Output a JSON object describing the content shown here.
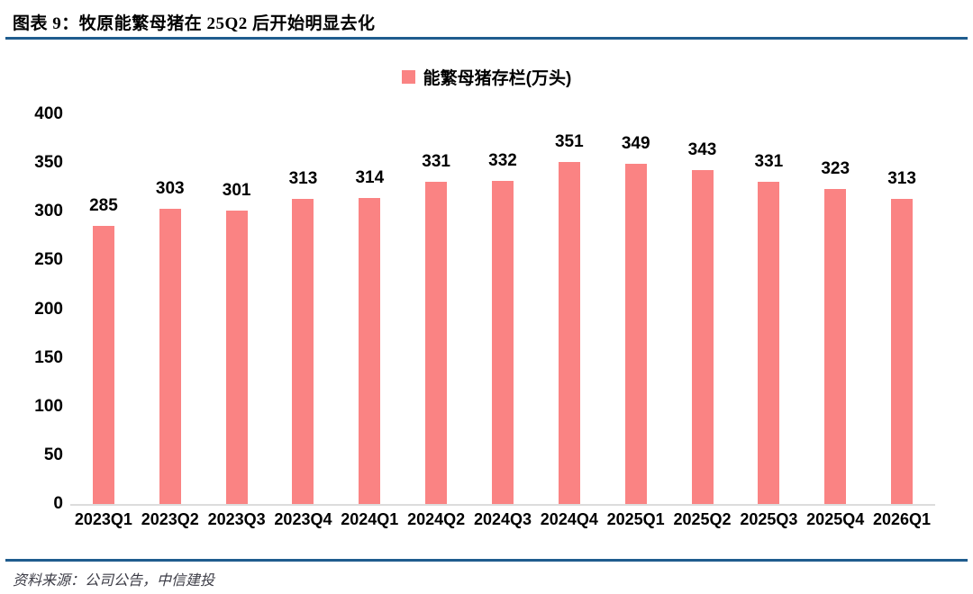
{
  "header": {
    "title": "图表 9：牧原能繁母猪在 25Q2 后开始明显去化"
  },
  "legend": {
    "label": "能繁母猪存栏(万头)"
  },
  "footer": {
    "source": "资料来源：公司公告，中信建投"
  },
  "colors": {
    "bar": "#fa8383",
    "rule_blue": "#1f5c8e",
    "axis_line": "#dcdcdc",
    "label_text": "#000000",
    "source_text": "#3c3c46"
  },
  "chart_data": {
    "type": "bar",
    "title": "能繁母猪存栏(万头)",
    "categories": [
      "2023Q1",
      "2023Q2",
      "2023Q3",
      "2023Q4",
      "2024Q1",
      "2024Q2",
      "2024Q3",
      "2024Q4",
      "2025Q1",
      "2025Q2",
      "2025Q3",
      "2025Q4",
      "2026Q1"
    ],
    "values": [
      285,
      303,
      301,
      313,
      314,
      331,
      332,
      351,
      349,
      343,
      331,
      323,
      313
    ],
    "xlabel": "",
    "ylabel": "",
    "ylim": [
      0,
      400
    ],
    "yticks": [
      0,
      50,
      100,
      150,
      200,
      250,
      300,
      350,
      400
    ],
    "grid": false,
    "legend_position": "top",
    "data_labels": true
  }
}
